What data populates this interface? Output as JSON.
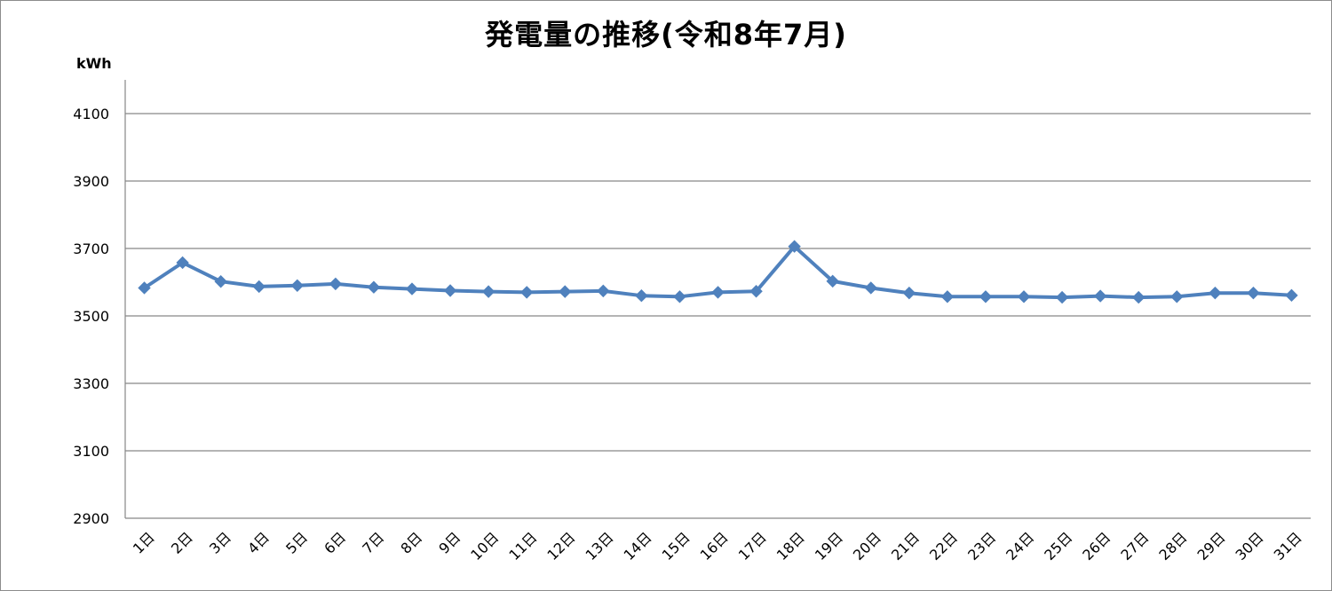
{
  "chart_data": {
    "type": "line",
    "title": "発電量の推移(令和8年7月)",
    "ylabel": "kWh",
    "xlabel": "",
    "ylim": [
      2900,
      4100
    ],
    "yticks": [
      2900,
      3100,
      3300,
      3500,
      3700,
      3900,
      4100
    ],
    "grid": true,
    "legend": "none",
    "line_color": "#4f81bd",
    "categories": [
      "1日",
      "2日",
      "3日",
      "4日",
      "5日",
      "6日",
      "7日",
      "8日",
      "9日",
      "10日",
      "11日",
      "12日",
      "13日",
      "14日",
      "15日",
      "16日",
      "17日",
      "18日",
      "19日",
      "20日",
      "21日",
      "22日",
      "23日",
      "24日",
      "25日",
      "26日",
      "27日",
      "28日",
      "29日",
      "30日",
      "31日"
    ],
    "series": [
      {
        "values": [
          3583,
          3658,
          3602,
          3587,
          3590,
          3595,
          3585,
          3580,
          3575,
          3572,
          3570,
          3572,
          3574,
          3560,
          3557,
          3570,
          3573,
          3706,
          3603,
          3583,
          3568,
          3557,
          3557,
          3557,
          3555,
          3559,
          3555,
          3557,
          3568,
          3568,
          3561
        ]
      }
    ]
  }
}
